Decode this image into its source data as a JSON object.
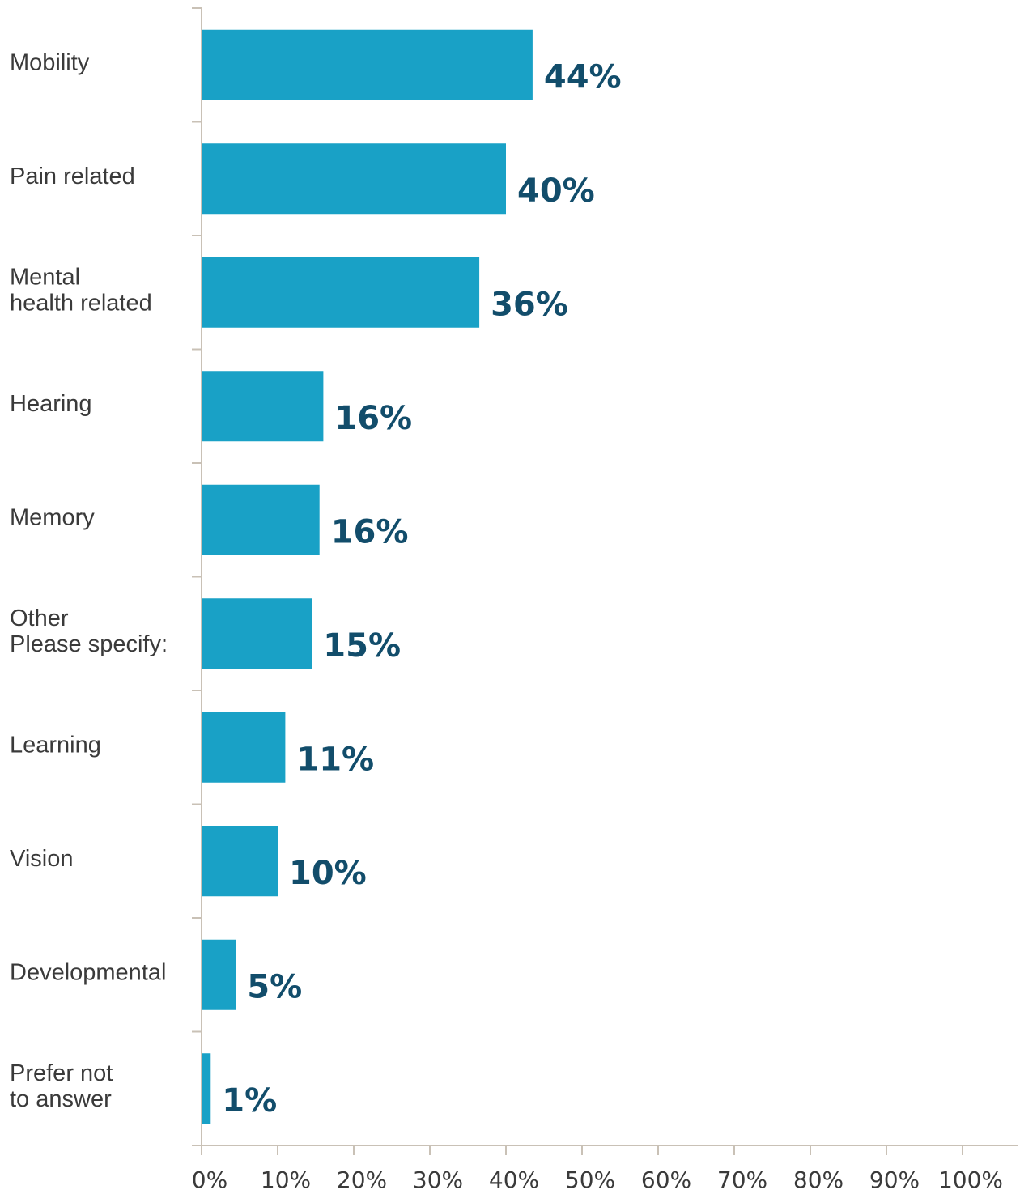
{
  "chart_data": {
    "type": "bar",
    "orientation": "horizontal",
    "categories": [
      [
        "Mobility"
      ],
      [
        "Pain related"
      ],
      [
        "Mental",
        "health related"
      ],
      [
        "Hearing"
      ],
      [
        "Memory"
      ],
      [
        "Other",
        "Please specify:"
      ],
      [
        "Learning"
      ],
      [
        "Vision"
      ],
      [
        "Developmental"
      ],
      [
        "Prefer not",
        "to answer"
      ]
    ],
    "values": [
      43.5,
      40,
      36.5,
      16,
      15.5,
      14.5,
      11,
      10,
      4.5,
      1.2
    ],
    "value_labels": [
      "44%",
      "40%",
      "36%",
      "16%",
      "16%",
      "15%",
      "11%",
      "10%",
      "5%",
      "1%"
    ],
    "x_ticks": [
      "0%",
      "10%",
      "20%",
      "30%",
      "40%",
      "50%",
      "60%",
      "70%",
      "80%",
      "90%",
      "100%"
    ],
    "xlim": [
      0,
      100
    ],
    "grid": false,
    "title": "",
    "xlabel": "",
    "ylabel": "",
    "colors": {
      "bar": "#19a1c6",
      "value_label": "#124d6b",
      "axis": "#c9c1b6",
      "text": "#3a3a3a"
    }
  }
}
